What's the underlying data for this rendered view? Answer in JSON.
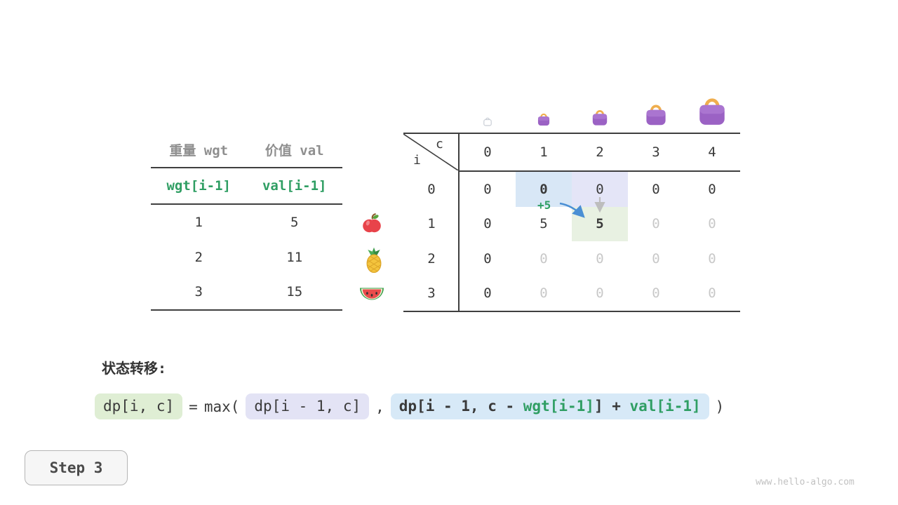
{
  "weights_table": {
    "col_headers": [
      "重量 wgt",
      "价值 val"
    ],
    "sub_headers": [
      "wgt[i-1]",
      "val[i-1]"
    ],
    "rows": [
      {
        "wgt": "1",
        "val": "5",
        "icon": "apple"
      },
      {
        "wgt": "2",
        "val": "11",
        "icon": "pineapple"
      },
      {
        "wgt": "3",
        "val": "15",
        "icon": "watermelon"
      }
    ]
  },
  "dp_table": {
    "corner": {
      "col_var": "c",
      "row_var": "i"
    },
    "col_headers": [
      "0",
      "1",
      "2",
      "3",
      "4"
    ],
    "capacity_icons": [
      "bag-empty",
      "bag-capacity-1",
      "bag-capacity-2",
      "bag-capacity-3",
      "bag-capacity-4"
    ],
    "rows": [
      {
        "label": "0",
        "cells": [
          {
            "t": "0"
          },
          {
            "t": "0",
            "style": "bold",
            "hl": "blue"
          },
          {
            "t": "0",
            "hl": "lavender"
          },
          {
            "t": "0"
          },
          {
            "t": "0"
          }
        ]
      },
      {
        "label": "1",
        "cells": [
          {
            "t": "0"
          },
          {
            "t": "5"
          },
          {
            "t": "5",
            "style": "bold",
            "hl": "green"
          },
          {
            "t": "0",
            "style": "muted"
          },
          {
            "t": "0",
            "style": "muted"
          }
        ]
      },
      {
        "label": "2",
        "cells": [
          {
            "t": "0"
          },
          {
            "t": "0",
            "style": "muted"
          },
          {
            "t": "0",
            "style": "muted"
          },
          {
            "t": "0",
            "style": "muted"
          },
          {
            "t": "0",
            "style": "muted"
          }
        ]
      },
      {
        "label": "3",
        "cells": [
          {
            "t": "0"
          },
          {
            "t": "0",
            "style": "muted"
          },
          {
            "t": "0",
            "style": "muted"
          },
          {
            "t": "0",
            "style": "muted"
          },
          {
            "t": "0",
            "style": "muted"
          }
        ]
      }
    ],
    "annotation": {
      "text": "+5",
      "color": "#2f9e63"
    }
  },
  "formula": {
    "section_label": "状态转移:",
    "lhs": "dp[i, c]",
    "equals": "=",
    "max_open": "max(",
    "term1": "dp[i - 1, c]",
    "separator": ",",
    "term2": {
      "part1": "dp[i - 1, c - ",
      "wgt": "wgt[i-1]",
      "part2": "] + ",
      "val": "val[i-1]"
    },
    "close_paren": ")"
  },
  "step_indicator": "Step 3",
  "watermark": "www.hello-algo.com",
  "colors": {
    "green_text": "#2f9e63",
    "hl_green": "#e8f1e2",
    "hl_blue": "#d8e7f6",
    "hl_lavender": "#e4e5f7",
    "muted_text": "#c8c8c8",
    "arrow_blue": "#4a8fd4",
    "arrow_gray": "#bdbdbd",
    "bag_purple": "#9b62c4",
    "bag_handle": "#efae4e"
  }
}
